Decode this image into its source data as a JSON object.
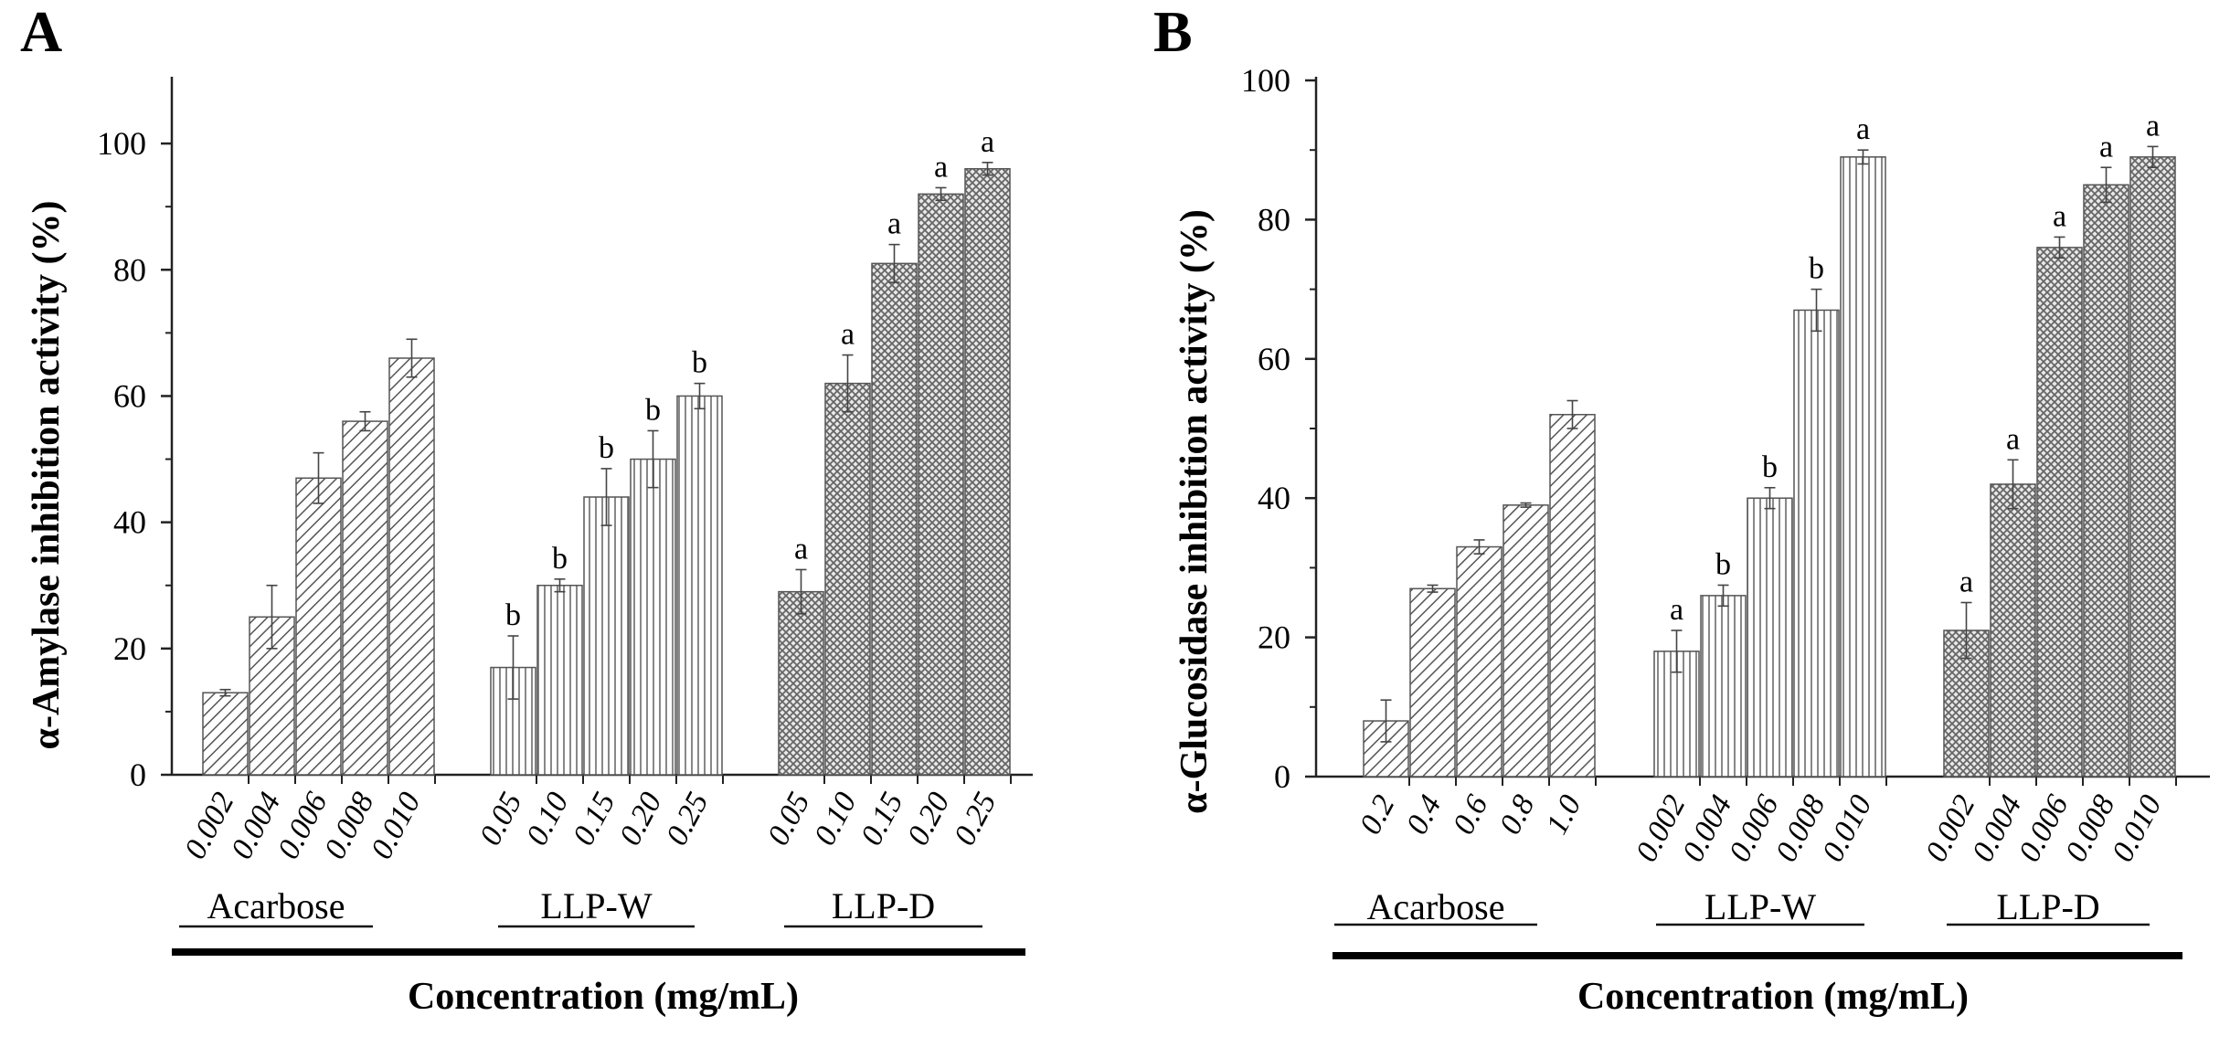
{
  "chart_data": [
    {
      "type": "bar",
      "panel": "A",
      "ylabel": "α-Amylase inhibition activity (%)",
      "xlabel": "Concentration (mg/mL)",
      "ylim": [
        0,
        110
      ],
      "yticks": [
        0,
        20,
        40,
        60,
        80,
        100
      ],
      "groups": [
        {
          "name": "Acarbose",
          "pattern": "diag",
          "categories": [
            "0.002",
            "0.004",
            "0.006",
            "0.008",
            "0.010"
          ],
          "values": [
            13,
            25,
            47,
            56,
            66
          ],
          "errors": [
            0.5,
            5,
            4,
            1.5,
            3
          ],
          "labels": [
            "",
            "",
            "",
            "",
            ""
          ]
        },
        {
          "name": "LLP-W",
          "pattern": "vert",
          "categories": [
            "0.05",
            "0.10",
            "0.15",
            "0.20",
            "0.25"
          ],
          "values": [
            17,
            30,
            44,
            50,
            60
          ],
          "errors": [
            5,
            1,
            4.5,
            4.5,
            2
          ],
          "labels": [
            "b",
            "b",
            "b",
            "b",
            "b"
          ]
        },
        {
          "name": "LLP-D",
          "pattern": "cross",
          "categories": [
            "0.05",
            "0.10",
            "0.15",
            "0.20",
            "0.25"
          ],
          "values": [
            29,
            62,
            81,
            92,
            96
          ],
          "errors": [
            3.5,
            4.5,
            3,
            1,
            1
          ],
          "labels": [
            "a",
            "a",
            "a",
            "a",
            "a"
          ]
        }
      ]
    },
    {
      "type": "bar",
      "panel": "B",
      "ylabel": "α-Glucosidase inhibition activity (%)",
      "xlabel": "Concentration (mg/mL)",
      "ylim": [
        0,
        100
      ],
      "yticks": [
        0,
        20,
        40,
        60,
        80,
        100
      ],
      "groups": [
        {
          "name": "Acarbose",
          "pattern": "diag",
          "categories": [
            "0.2",
            "0.4",
            "0.6",
            "0.8",
            "1.0"
          ],
          "values": [
            8,
            27,
            33,
            39,
            52
          ],
          "errors": [
            3,
            0.5,
            1,
            0.3,
            2
          ],
          "labels": [
            "",
            "",
            "",
            "",
            ""
          ]
        },
        {
          "name": "LLP-W",
          "pattern": "vert",
          "categories": [
            "0.002",
            "0.004",
            "0.006",
            "0.008",
            "0.010"
          ],
          "values": [
            18,
            26,
            40,
            67,
            89
          ],
          "errors": [
            3,
            1.5,
            1.5,
            3,
            1
          ],
          "labels": [
            "a",
            "b",
            "b",
            "b",
            "a"
          ]
        },
        {
          "name": "LLP-D",
          "pattern": "cross",
          "categories": [
            "0.002",
            "0.004",
            "0.006",
            "0.008",
            "0.010"
          ],
          "values": [
            21,
            42,
            76,
            85,
            89
          ],
          "errors": [
            4,
            3.5,
            1.5,
            2.5,
            1.5
          ],
          "labels": [
            "a",
            "a",
            "a",
            "a",
            "a"
          ]
        }
      ]
    }
  ]
}
